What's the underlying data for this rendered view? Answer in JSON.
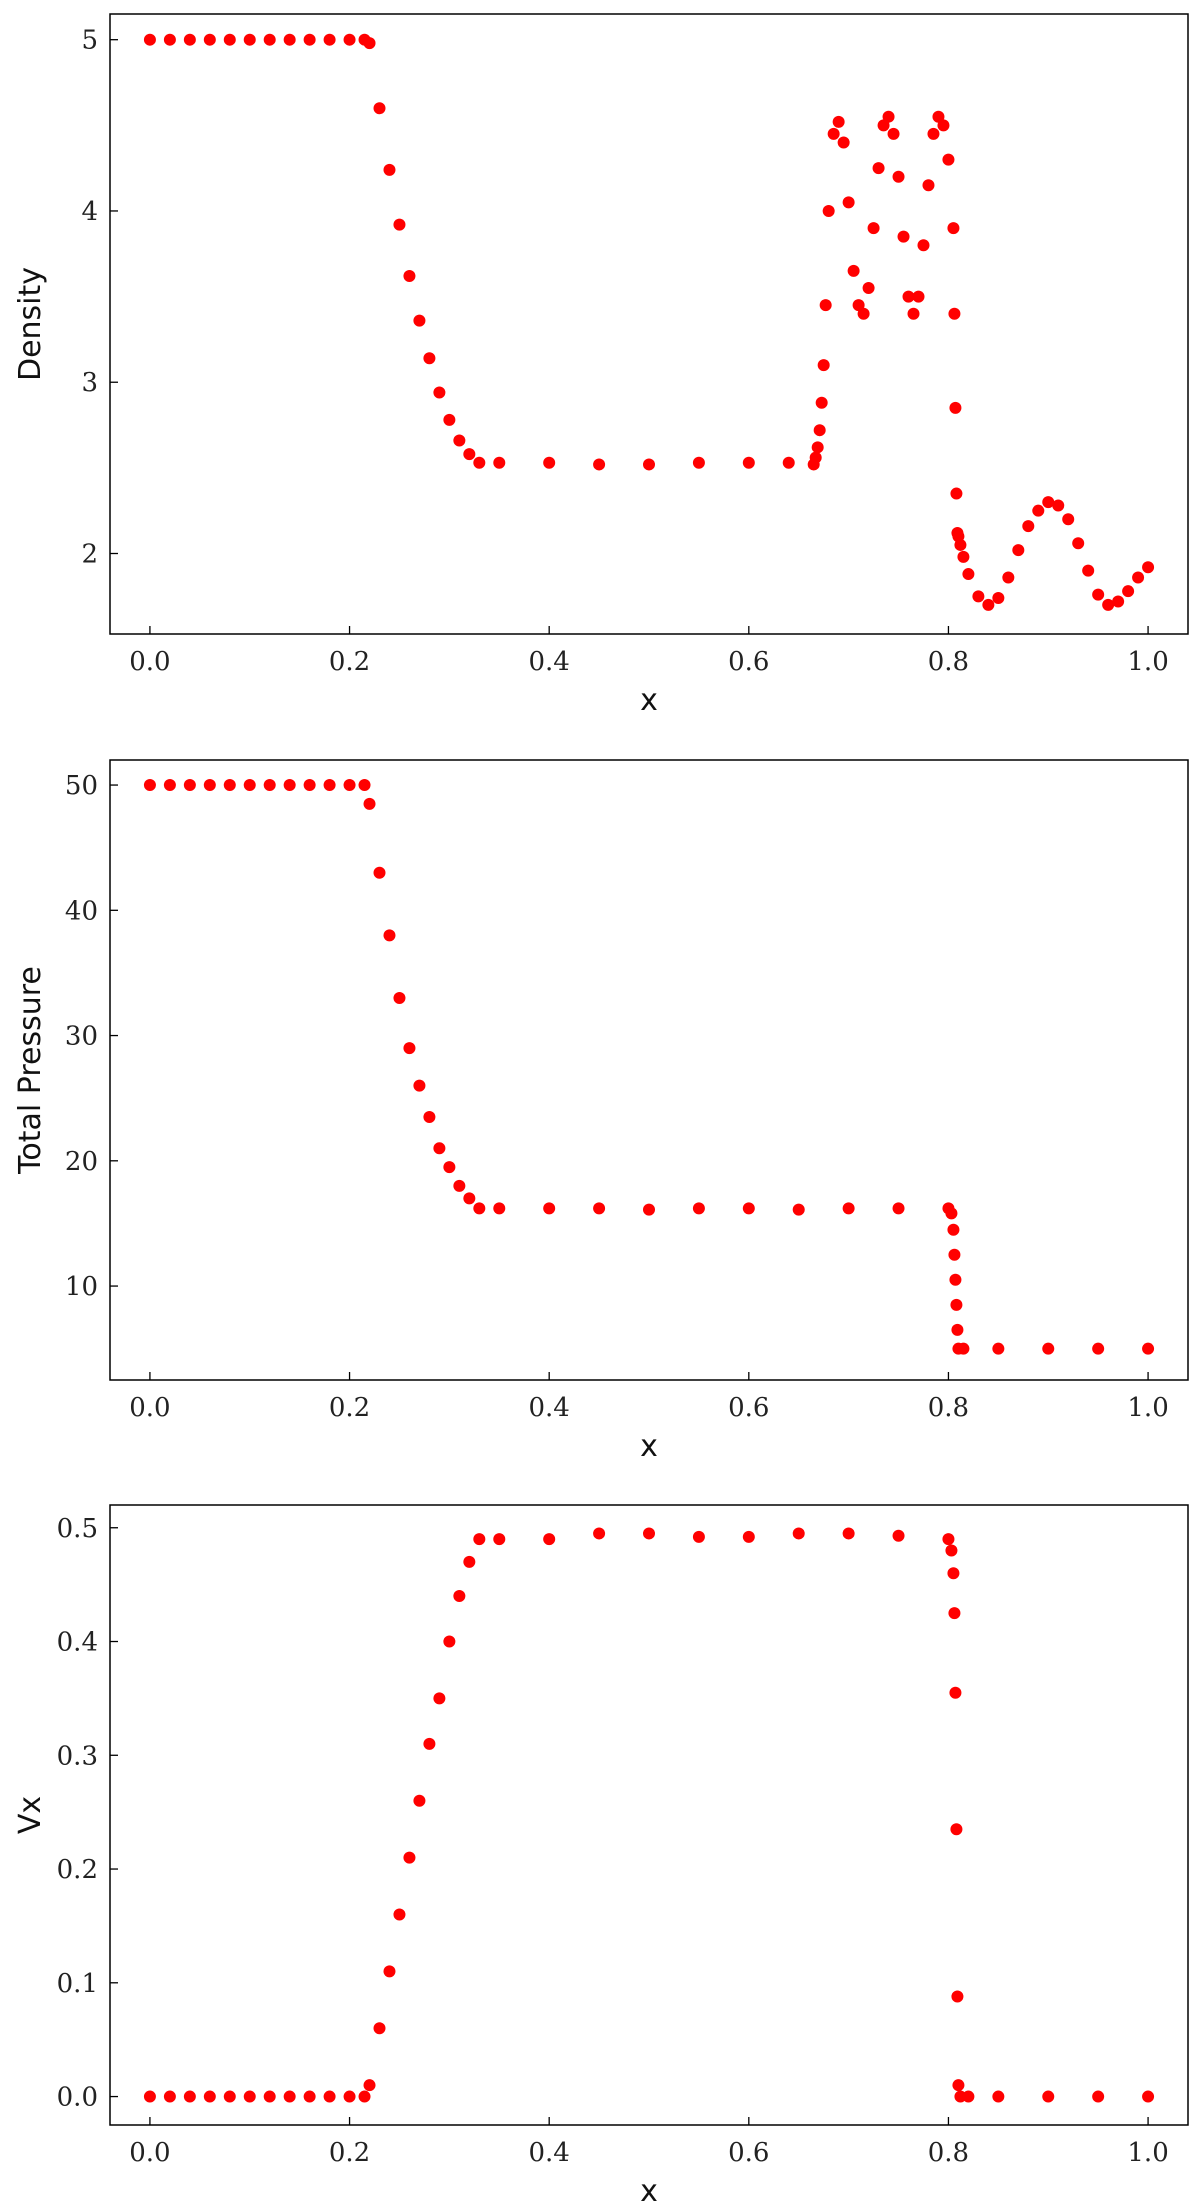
{
  "chart_data": [
    {
      "type": "scatter",
      "xlabel": "x",
      "ylabel": "Density",
      "xlim": [
        -0.04,
        1.04
      ],
      "ylim": [
        1.53,
        5.15
      ],
      "xticks": [
        0.0,
        0.2,
        0.4,
        0.6,
        0.8,
        1.0
      ],
      "xtick_labels": [
        "0.0",
        "0.2",
        "0.4",
        "0.6",
        "0.8",
        "1.0"
      ],
      "yticks": [
        2,
        3,
        4,
        5
      ],
      "ytick_labels": [
        "2",
        "3",
        "4",
        "5"
      ],
      "color": "#ff0000",
      "grid": false,
      "series": [
        {
          "x": [
            0.0,
            0.02,
            0.04,
            0.06,
            0.08,
            0.1,
            0.12,
            0.14,
            0.16,
            0.18,
            0.2,
            0.215,
            0.22,
            0.23,
            0.24,
            0.25,
            0.26,
            0.27,
            0.28,
            0.29,
            0.3,
            0.31,
            0.32,
            0.33,
            0.35,
            0.4,
            0.45,
            0.5,
            0.55,
            0.6,
            0.64,
            0.665,
            0.667,
            0.669,
            0.671,
            0.673,
            0.675,
            0.677,
            0.68,
            0.685,
            0.69,
            0.695,
            0.7,
            0.705,
            0.71,
            0.715,
            0.72,
            0.725,
            0.73,
            0.735,
            0.74,
            0.745,
            0.75,
            0.755,
            0.76,
            0.765,
            0.77,
            0.775,
            0.78,
            0.785,
            0.79,
            0.795,
            0.8,
            0.805,
            0.806,
            0.807,
            0.808,
            0.809,
            0.81,
            0.812,
            0.815,
            0.82,
            0.83,
            0.84,
            0.85,
            0.86,
            0.87,
            0.88,
            0.89,
            0.9,
            0.91,
            0.92,
            0.93,
            0.94,
            0.95,
            0.96,
            0.97,
            0.98,
            0.99,
            1.0
          ],
          "y": [
            5.0,
            5.0,
            5.0,
            5.0,
            5.0,
            5.0,
            5.0,
            5.0,
            5.0,
            5.0,
            5.0,
            5.0,
            4.98,
            4.6,
            4.24,
            3.92,
            3.62,
            3.36,
            3.14,
            2.94,
            2.78,
            2.66,
            2.58,
            2.53,
            2.53,
            2.53,
            2.52,
            2.52,
            2.53,
            2.53,
            2.53,
            2.52,
            2.56,
            2.62,
            2.72,
            2.88,
            3.1,
            3.45,
            4.0,
            4.45,
            4.52,
            4.4,
            4.05,
            3.65,
            3.45,
            3.4,
            3.55,
            3.9,
            4.25,
            4.5,
            4.55,
            4.45,
            4.2,
            3.85,
            3.5,
            3.4,
            3.5,
            3.8,
            4.15,
            4.45,
            4.55,
            4.5,
            4.3,
            3.9,
            3.4,
            2.85,
            2.35,
            2.12,
            2.1,
            2.05,
            1.98,
            1.88,
            1.75,
            1.7,
            1.74,
            1.86,
            2.02,
            2.16,
            2.25,
            2.3,
            2.28,
            2.2,
            2.06,
            1.9,
            1.76,
            1.7,
            1.72,
            1.78,
            1.86,
            1.92
          ]
        }
      ]
    },
    {
      "type": "scatter",
      "xlabel": "x",
      "ylabel": "Total Pressure",
      "xlim": [
        -0.04,
        1.04
      ],
      "ylim": [
        2.5,
        52.0
      ],
      "xticks": [
        0.0,
        0.2,
        0.4,
        0.6,
        0.8,
        1.0
      ],
      "xtick_labels": [
        "0.0",
        "0.2",
        "0.4",
        "0.6",
        "0.8",
        "1.0"
      ],
      "yticks": [
        10,
        20,
        30,
        40,
        50
      ],
      "ytick_labels": [
        "10",
        "20",
        "30",
        "40",
        "50"
      ],
      "color": "#ff0000",
      "grid": false,
      "series": [
        {
          "x": [
            0.0,
            0.02,
            0.04,
            0.06,
            0.08,
            0.1,
            0.12,
            0.14,
            0.16,
            0.18,
            0.2,
            0.215,
            0.22,
            0.23,
            0.24,
            0.25,
            0.26,
            0.27,
            0.28,
            0.29,
            0.3,
            0.31,
            0.32,
            0.33,
            0.35,
            0.4,
            0.45,
            0.5,
            0.55,
            0.6,
            0.65,
            0.7,
            0.75,
            0.8,
            0.803,
            0.805,
            0.806,
            0.807,
            0.808,
            0.809,
            0.81,
            0.815,
            0.85,
            0.9,
            0.95,
            1.0
          ],
          "y": [
            50.0,
            50.0,
            50.0,
            50.0,
            50.0,
            50.0,
            50.0,
            50.0,
            50.0,
            50.0,
            50.0,
            50.0,
            48.5,
            43.0,
            38.0,
            33.0,
            29.0,
            26.0,
            23.5,
            21.0,
            19.5,
            18.0,
            17.0,
            16.2,
            16.2,
            16.2,
            16.2,
            16.1,
            16.2,
            16.2,
            16.1,
            16.2,
            16.2,
            16.2,
            15.8,
            14.5,
            12.5,
            10.5,
            8.5,
            6.5,
            5.0,
            5.0,
            5.0,
            5.0,
            5.0,
            5.0
          ]
        }
      ]
    },
    {
      "type": "scatter",
      "xlabel": "x",
      "ylabel": "Vx",
      "xlim": [
        -0.04,
        1.04
      ],
      "ylim": [
        -0.025,
        0.52
      ],
      "xticks": [
        0.0,
        0.2,
        0.4,
        0.6,
        0.8,
        1.0
      ],
      "xtick_labels": [
        "0.0",
        "0.2",
        "0.4",
        "0.6",
        "0.8",
        "1.0"
      ],
      "yticks": [
        0.0,
        0.1,
        0.2,
        0.3,
        0.4,
        0.5
      ],
      "ytick_labels": [
        "0.0",
        "0.1",
        "0.2",
        "0.3",
        "0.4",
        "0.5"
      ],
      "color": "#ff0000",
      "grid": false,
      "series": [
        {
          "x": [
            0.0,
            0.02,
            0.04,
            0.06,
            0.08,
            0.1,
            0.12,
            0.14,
            0.16,
            0.18,
            0.2,
            0.215,
            0.22,
            0.23,
            0.24,
            0.25,
            0.26,
            0.27,
            0.28,
            0.29,
            0.3,
            0.31,
            0.32,
            0.33,
            0.35,
            0.4,
            0.45,
            0.5,
            0.55,
            0.6,
            0.65,
            0.7,
            0.75,
            0.8,
            0.803,
            0.805,
            0.806,
            0.807,
            0.808,
            0.809,
            0.81,
            0.812,
            0.82,
            0.85,
            0.9,
            0.95,
            1.0
          ],
          "y": [
            0.0,
            0.0,
            0.0,
            0.0,
            0.0,
            0.0,
            0.0,
            0.0,
            0.0,
            0.0,
            0.0,
            0.0,
            0.01,
            0.06,
            0.11,
            0.16,
            0.21,
            0.26,
            0.31,
            0.35,
            0.4,
            0.44,
            0.47,
            0.49,
            0.49,
            0.49,
            0.495,
            0.495,
            0.492,
            0.492,
            0.495,
            0.495,
            0.493,
            0.49,
            0.48,
            0.46,
            0.425,
            0.355,
            0.235,
            0.088,
            0.01,
            0.0,
            0.0,
            0.0,
            0.0,
            0.0,
            0.0
          ]
        }
      ]
    }
  ]
}
